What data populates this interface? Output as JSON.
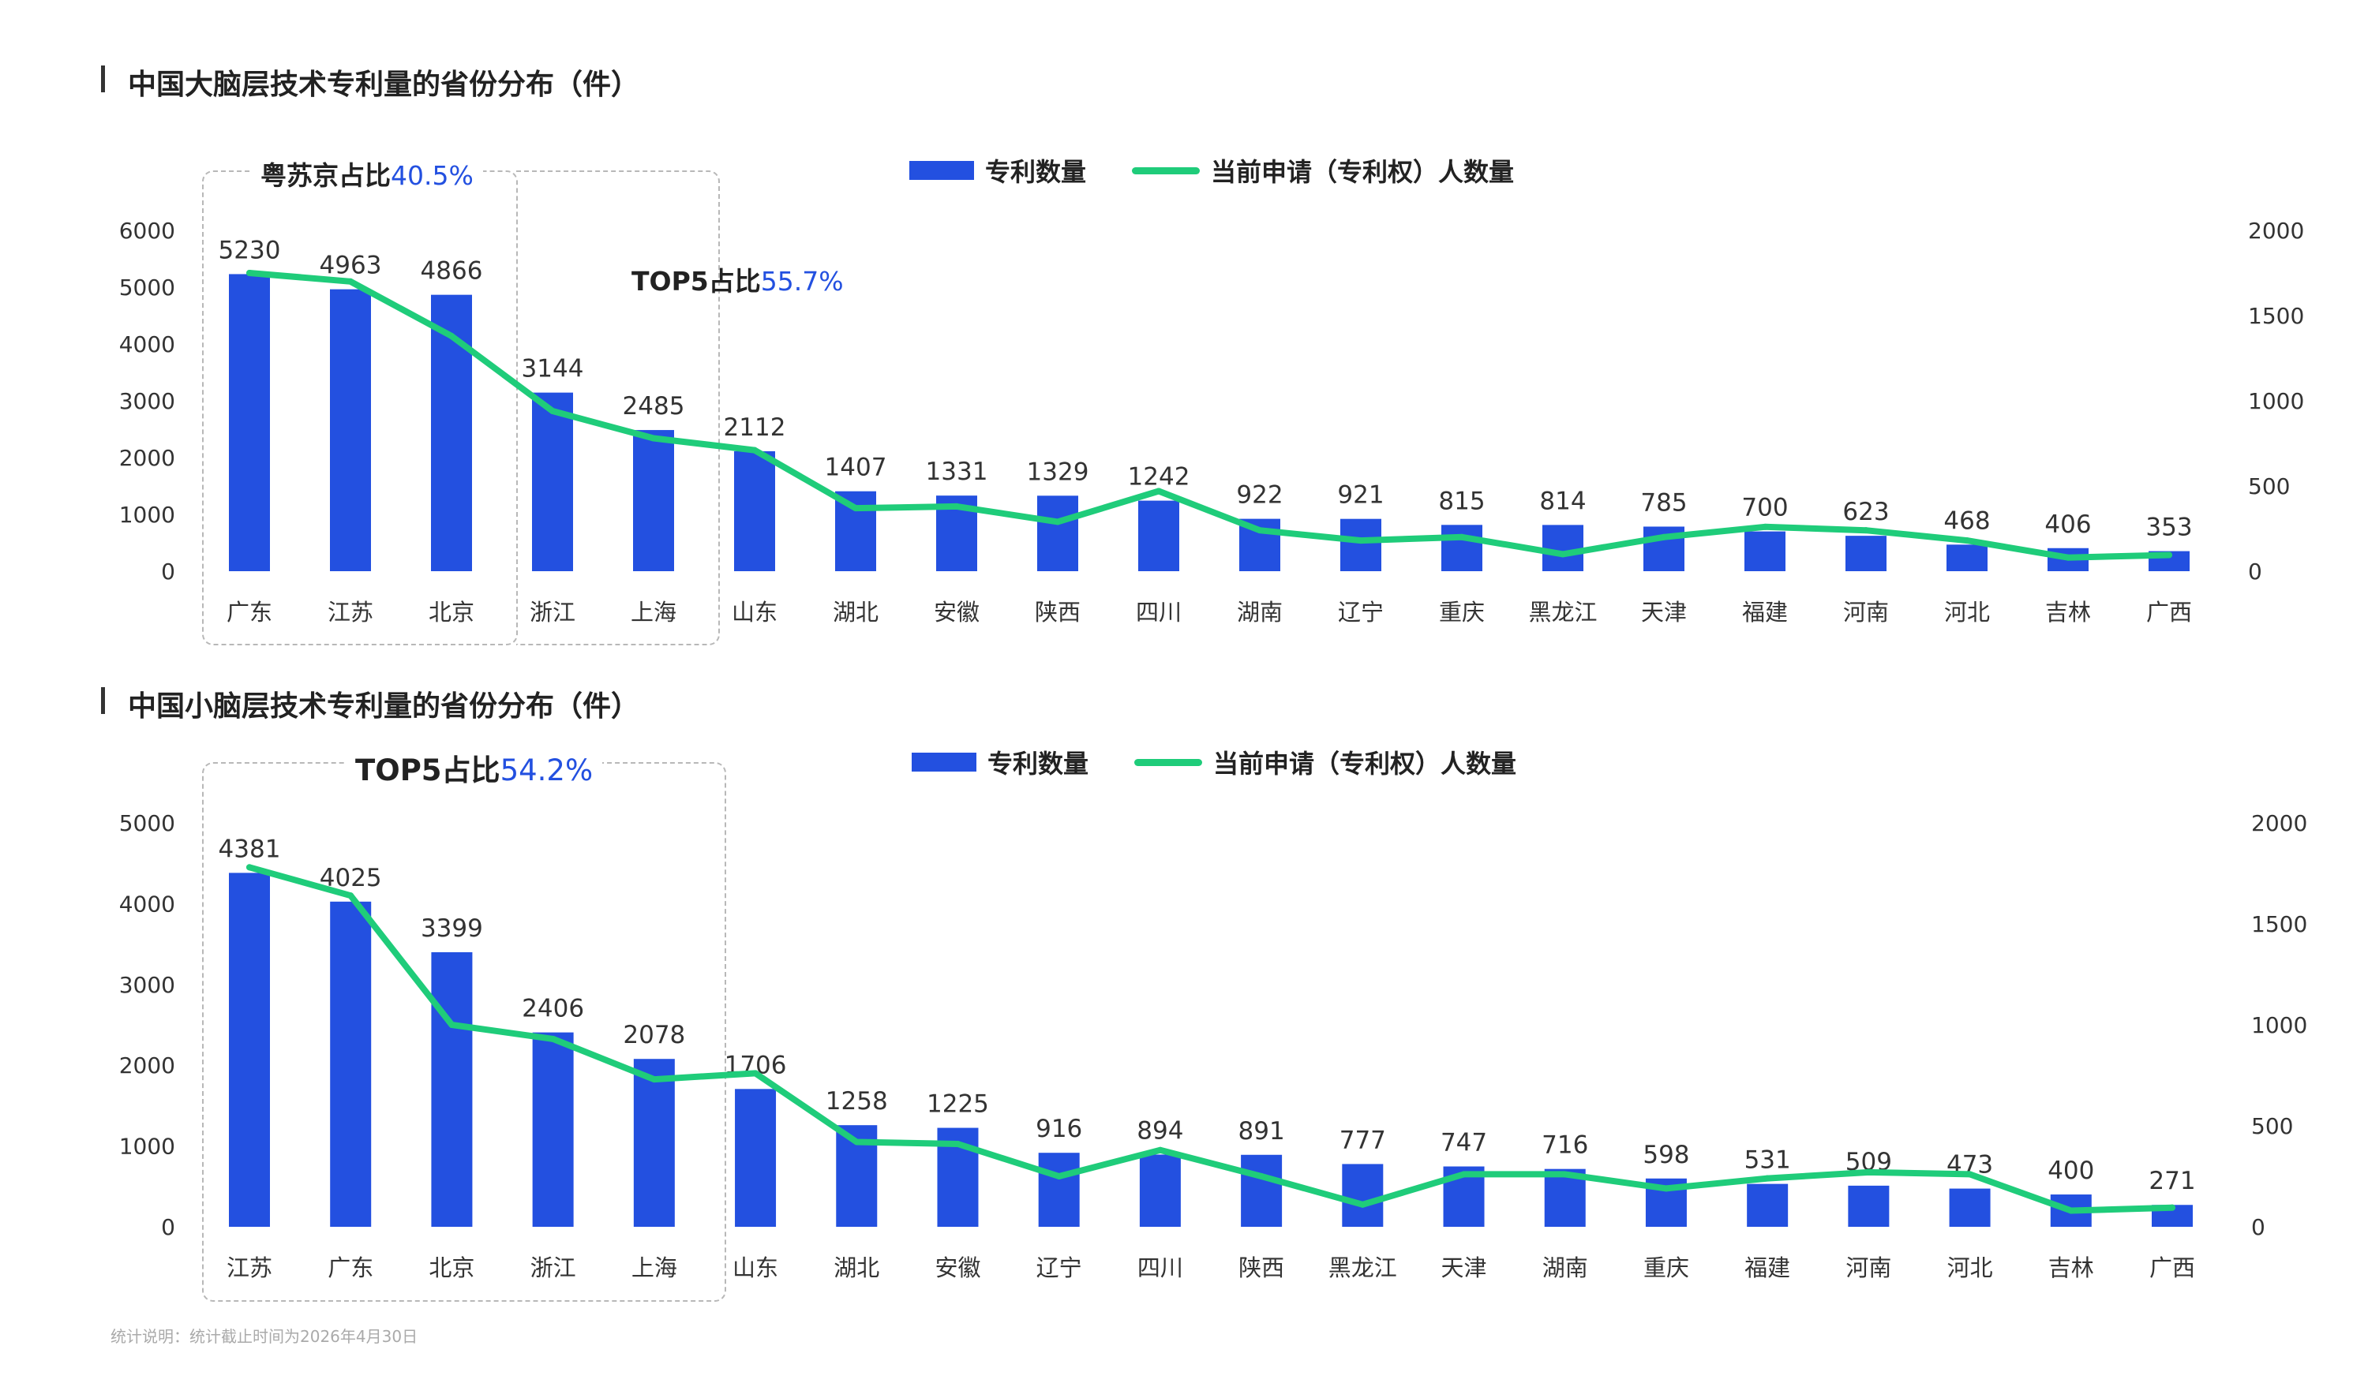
{
  "footnote": "统计说明：统计截止时间为2026年4月30日",
  "chart_data": [
    {
      "type": "bar",
      "title": "中国大脑层技术专利量的省份分布（件）",
      "categories": [
        "广东",
        "江苏",
        "北京",
        "浙江",
        "上海",
        "山东",
        "湖北",
        "安徽",
        "陕西",
        "四川",
        "湖南",
        "辽宁",
        "重庆",
        "黑龙江",
        "天津",
        "福建",
        "河南",
        "河北",
        "吉林",
        "广西"
      ],
      "series": [
        {
          "name": "专利数量",
          "type": "bar",
          "axis": "left",
          "values": [
            5230,
            4963,
            4866,
            3144,
            2485,
            2112,
            1407,
            1331,
            1329,
            1242,
            922,
            921,
            815,
            814,
            785,
            700,
            623,
            468,
            406,
            353
          ]
        },
        {
          "name": "当前申请（专利权）人数量",
          "type": "line",
          "axis": "right",
          "values": [
            1750,
            1700,
            1380,
            940,
            780,
            710,
            370,
            380,
            290,
            470,
            240,
            180,
            200,
            100,
            200,
            260,
            240,
            180,
            80,
            95
          ]
        }
      ],
      "y_left": {
        "ticks": [
          0,
          1000,
          2000,
          3000,
          4000,
          5000,
          6000
        ],
        "lim": [
          0,
          6000
        ]
      },
      "y_right": {
        "ticks": [
          0,
          500,
          1000,
          1500,
          2000
        ],
        "lim": [
          0,
          2000
        ]
      },
      "annotations": [
        {
          "label": "粤苏京占比",
          "value": "40.5%",
          "span": [
            0,
            2
          ]
        },
        {
          "label": "TOP5占比",
          "value": "55.7%",
          "span": [
            0,
            4
          ]
        }
      ],
      "colors": {
        "bar": "#2350e0",
        "line": "#1fcc7a"
      },
      "legend": "top-center"
    },
    {
      "type": "bar",
      "title": "中国小脑层技术专利量的省份分布（件）",
      "categories": [
        "江苏",
        "广东",
        "北京",
        "浙江",
        "上海",
        "山东",
        "湖北",
        "安徽",
        "辽宁",
        "四川",
        "陕西",
        "黑龙江",
        "天津",
        "湖南",
        "重庆",
        "福建",
        "河南",
        "河北",
        "吉林",
        "广西"
      ],
      "series": [
        {
          "name": "专利数量",
          "type": "bar",
          "axis": "left",
          "values": [
            4381,
            4025,
            3399,
            2406,
            2078,
            1706,
            1258,
            1225,
            916,
            894,
            891,
            777,
            747,
            716,
            598,
            531,
            509,
            473,
            400,
            271
          ]
        },
        {
          "name": "当前申请（专利权）人数量",
          "type": "line",
          "axis": "right",
          "values": [
            1780,
            1640,
            1000,
            930,
            730,
            760,
            420,
            410,
            250,
            380,
            250,
            110,
            260,
            260,
            190,
            240,
            270,
            260,
            80,
            95
          ]
        }
      ],
      "y_left": {
        "ticks": [
          0,
          1000,
          2000,
          3000,
          4000,
          5000
        ],
        "lim": [
          0,
          5000
        ]
      },
      "y_right": {
        "ticks": [
          0,
          500,
          1000,
          1500,
          2000
        ],
        "lim": [
          0,
          2000
        ]
      },
      "annotations": [
        {
          "label": "TOP5占比",
          "value": "54.2%",
          "span": [
            0,
            4
          ]
        }
      ],
      "colors": {
        "bar": "#2350e0",
        "line": "#1fcc7a"
      },
      "legend": "top-center"
    }
  ]
}
